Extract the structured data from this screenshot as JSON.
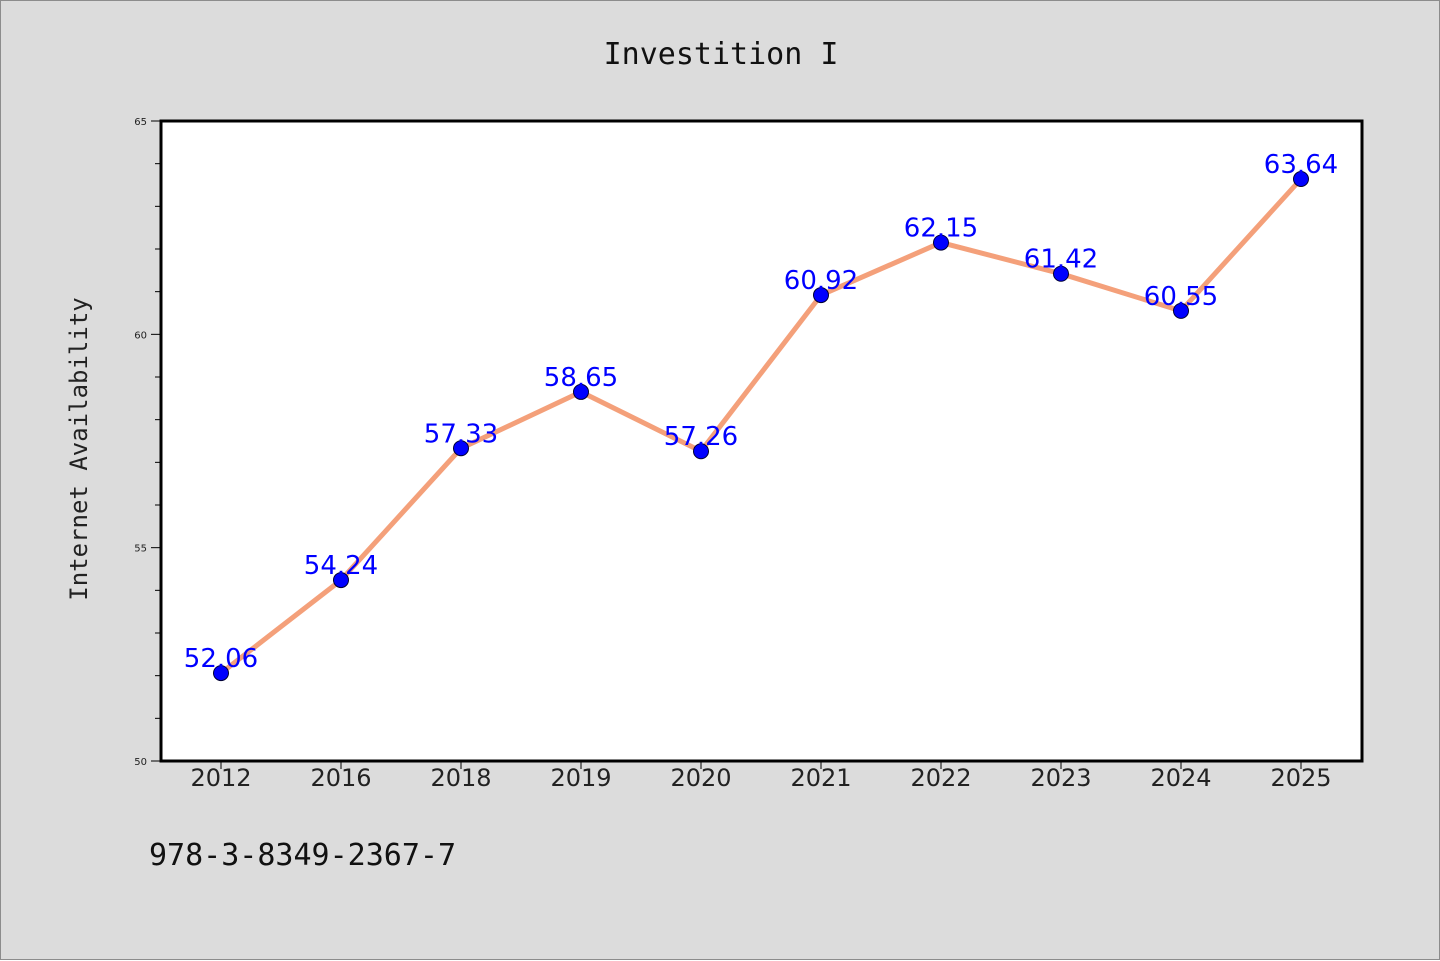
{
  "chart_data": {
    "type": "line",
    "title": "Investition I",
    "xlabel": "",
    "ylabel": "Internet Availability",
    "categories": [
      "2012",
      "2016",
      "2018",
      "2019",
      "2020",
      "2021",
      "2022",
      "2023",
      "2024",
      "2025"
    ],
    "series": [
      {
        "values": [
          52.06,
          54.24,
          57.33,
          58.65,
          57.26,
          60.92,
          62.15,
          61.42,
          60.55,
          63.64
        ],
        "line_color": "#f4a07a",
        "marker_color": "#0000ff"
      }
    ],
    "data_labels": [
      "52.06",
      "54.24",
      "57.33",
      "58.65",
      "57.26",
      "60.92",
      "62.15",
      "61.42",
      "60.55",
      "63.64"
    ],
    "ylim": [
      50,
      65
    ],
    "yticks": [
      50,
      55,
      60,
      65
    ],
    "ytick_labels": [
      "50",
      "55",
      "60",
      "65"
    ],
    "grid": false,
    "legend": "none"
  },
  "footer_text": "978-3-8349-2367-7",
  "colors": {
    "background": "#dcdcdc",
    "plot_background": "#ffffff",
    "line": "#f4a07a",
    "marker": "#0000ff",
    "label": "#0000ff"
  }
}
